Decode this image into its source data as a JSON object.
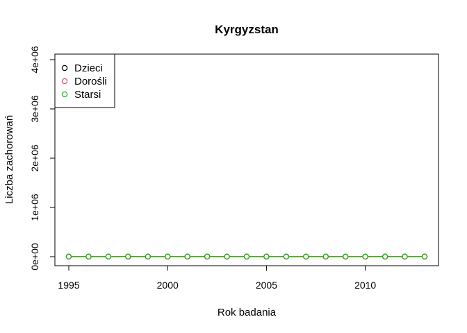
{
  "chart_data": {
    "type": "line",
    "title": "Kyrgyzstan",
    "xlabel": "Rok badania",
    "ylabel": "Liczba zachorowań",
    "x": [
      1995,
      1996,
      1997,
      1998,
      1999,
      2000,
      2001,
      2002,
      2003,
      2004,
      2005,
      2006,
      2007,
      2008,
      2009,
      2010,
      2011,
      2012,
      2013
    ],
    "xlim": [
      1995,
      2013
    ],
    "ylim": [
      0,
      4000000
    ],
    "x_ticks": [
      1995,
      2000,
      2005,
      2010
    ],
    "x_tick_labels": [
      "1995",
      "2000",
      "2005",
      "2010"
    ],
    "y_ticks": [
      0,
      1000000,
      2000000,
      3000000,
      4000000
    ],
    "y_tick_labels": [
      "0e+00",
      "1e+06",
      "2e+06",
      "3e+06",
      "4e+06"
    ],
    "legend_position": "top-left",
    "series": [
      {
        "name": "Dzieci",
        "color": "#000000",
        "values": [
          500,
          520,
          480,
          510,
          530,
          490,
          500,
          470,
          460,
          480,
          500,
          490,
          470,
          480,
          500,
          490,
          510,
          500,
          480
        ]
      },
      {
        "name": "Dorośli",
        "color": "#DF536B",
        "values": [
          4000,
          4200,
          3900,
          4100,
          4300,
          4000,
          4100,
          3900,
          3800,
          3900,
          4000,
          4100,
          3900,
          4000,
          4200,
          4000,
          4100,
          4000,
          3900
        ]
      },
      {
        "name": "Starsi",
        "color": "#22B022",
        "values": [
          800,
          820,
          780,
          810,
          830,
          800,
          790,
          770,
          760,
          780,
          800,
          790,
          770,
          780,
          800,
          790,
          810,
          800,
          780
        ]
      }
    ]
  }
}
